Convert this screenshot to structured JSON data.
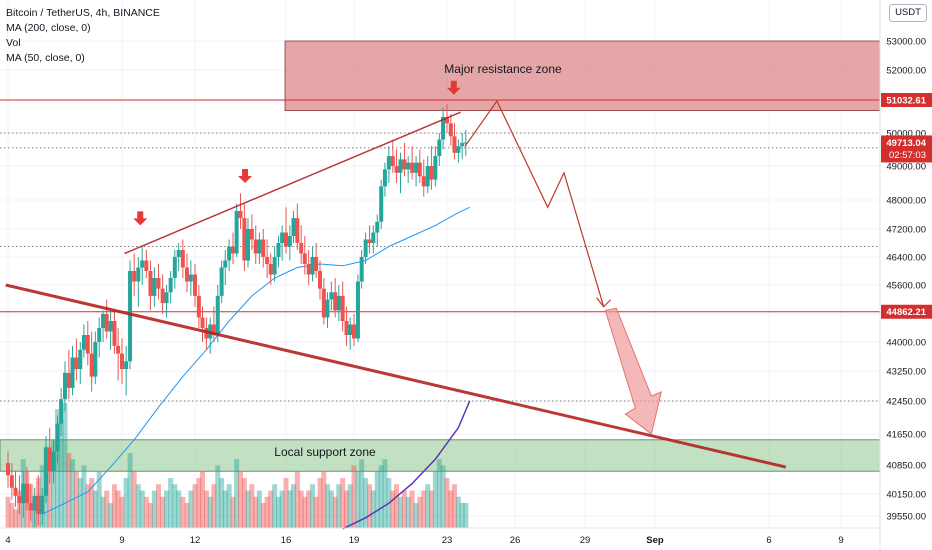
{
  "legend": {
    "symbol": "Bitcoin / TetherUS, 4h, BINANCE",
    "ma200": "MA (200, close, 0)",
    "vol": "Vol",
    "ma50": "MA (50, close, 0)"
  },
  "currency": "USDT",
  "annotations": {
    "resistance_label": "Major resistance zone",
    "support_label": "Local support zone"
  },
  "price_tags": {
    "resistance_line": "51032.61",
    "current_price": "49713.04",
    "countdown": "02:57:03",
    "support_line": "44862.21"
  },
  "colors": {
    "bull": "#26a69a",
    "bear": "#ef5350",
    "resistance_zone": "#d98080",
    "support_zone": "#8fc78f",
    "trendline": "#b22222",
    "ma50": "#2196f3",
    "ma200": "#5e35b1",
    "tag_red": "#d32f2f"
  },
  "chart_data": {
    "type": "candlestick",
    "symbol": "Bitcoin / TetherUS",
    "timeframe": "4h",
    "exchange": "BINANCE",
    "y_axis_ticks": [
      "53000.00",
      "52000.00",
      "51000.00",
      "50000.00",
      "49000.00",
      "48000.00",
      "47200.00",
      "46400.00",
      "45600.00",
      "44800.00",
      "44000.00",
      "43250.00",
      "42450.00",
      "41650.00",
      "40850.00",
      "40150.00",
      "39550.00"
    ],
    "x_axis_ticks": [
      "4",
      "9",
      "12",
      "16",
      "19",
      "23",
      "26",
      "29",
      "Sep",
      "6",
      "9"
    ],
    "x_tick_days": [
      4,
      9,
      12,
      16,
      19,
      23,
      26,
      29,
      32,
      37,
      40
    ],
    "y_range": [
      39200,
      53700
    ],
    "x_range_days": [
      3.9,
      43.2
    ],
    "resistance_zone": [
      50700,
      53000
    ],
    "support_zone": [
      40700,
      41500
    ],
    "horizontal_levels": [
      51032.61,
      44862.21
    ],
    "dotted_levels": [
      50000,
      49550,
      46700,
      42450
    ],
    "last_price": 49713.04,
    "candles": [
      {
        "d": 4.0,
        "o": 40900,
        "h": 41200,
        "l": 40300,
        "c": 40600
      },
      {
        "d": 4.17,
        "o": 40600,
        "h": 40900,
        "l": 40000,
        "c": 40300
      },
      {
        "d": 4.33,
        "o": 40300,
        "h": 40700,
        "l": 39800,
        "c": 40100
      },
      {
        "d": 4.5,
        "o": 40100,
        "h": 40600,
        "l": 39600,
        "c": 39900
      },
      {
        "d": 4.67,
        "o": 39900,
        "h": 40700,
        "l": 39500,
        "c": 40400
      },
      {
        "d": 4.83,
        "o": 40400,
        "h": 40800,
        "l": 39700,
        "c": 39900
      },
      {
        "d": 5.0,
        "o": 39900,
        "h": 40400,
        "l": 39400,
        "c": 39700
      },
      {
        "d": 5.17,
        "o": 39700,
        "h": 40300,
        "l": 39200,
        "c": 40100
      },
      {
        "d": 5.33,
        "o": 40100,
        "h": 40600,
        "l": 39300,
        "c": 39600
      },
      {
        "d": 5.5,
        "o": 39600,
        "h": 40300,
        "l": 39300,
        "c": 40100
      },
      {
        "d": 5.67,
        "o": 40100,
        "h": 41600,
        "l": 39900,
        "c": 41300
      },
      {
        "d": 5.83,
        "o": 41300,
        "h": 41800,
        "l": 40400,
        "c": 40700
      },
      {
        "d": 6.0,
        "o": 40700,
        "h": 41500,
        "l": 40400,
        "c": 41200
      },
      {
        "d": 6.17,
        "o": 41200,
        "h": 42100,
        "l": 40900,
        "c": 41900
      },
      {
        "d": 6.33,
        "o": 41900,
        "h": 42800,
        "l": 41600,
        "c": 42500
      },
      {
        "d": 6.5,
        "o": 42500,
        "h": 43500,
        "l": 42200,
        "c": 43200
      },
      {
        "d": 6.67,
        "o": 43200,
        "h": 43800,
        "l": 42500,
        "c": 42800
      },
      {
        "d": 6.83,
        "o": 42800,
        "h": 43900,
        "l": 42600,
        "c": 43600
      },
      {
        "d": 7.0,
        "o": 43600,
        "h": 44100,
        "l": 43000,
        "c": 43300
      },
      {
        "d": 7.17,
        "o": 43300,
        "h": 44000,
        "l": 42900,
        "c": 43800
      },
      {
        "d": 7.33,
        "o": 43800,
        "h": 44500,
        "l": 43600,
        "c": 44200
      },
      {
        "d": 7.5,
        "o": 44200,
        "h": 44600,
        "l": 43400,
        "c": 43700
      },
      {
        "d": 7.67,
        "o": 43700,
        "h": 44300,
        "l": 42700,
        "c": 43100
      },
      {
        "d": 7.83,
        "o": 43100,
        "h": 44300,
        "l": 42900,
        "c": 44000
      },
      {
        "d": 8.0,
        "o": 44000,
        "h": 44700,
        "l": 43600,
        "c": 44400
      },
      {
        "d": 8.17,
        "o": 44400,
        "h": 44900,
        "l": 44000,
        "c": 44800
      },
      {
        "d": 8.33,
        "o": 44800,
        "h": 45200,
        "l": 44100,
        "c": 44300
      },
      {
        "d": 8.5,
        "o": 44300,
        "h": 44900,
        "l": 43800,
        "c": 44600
      },
      {
        "d": 8.67,
        "o": 44600,
        "h": 44900,
        "l": 43700,
        "c": 43900
      },
      {
        "d": 8.83,
        "o": 43900,
        "h": 44400,
        "l": 43000,
        "c": 43700
      },
      {
        "d": 9.0,
        "o": 43700,
        "h": 44100,
        "l": 42900,
        "c": 43300
      },
      {
        "d": 9.17,
        "o": 43300,
        "h": 43900,
        "l": 42600,
        "c": 43500
      },
      {
        "d": 9.33,
        "o": 43500,
        "h": 46300,
        "l": 43300,
        "c": 46000
      },
      {
        "d": 9.5,
        "o": 46000,
        "h": 46500,
        "l": 45300,
        "c": 45700
      },
      {
        "d": 9.67,
        "o": 45700,
        "h": 46400,
        "l": 45000,
        "c": 46100
      },
      {
        "d": 9.83,
        "o": 46100,
        "h": 46700,
        "l": 45600,
        "c": 46300
      },
      {
        "d": 10.0,
        "o": 46300,
        "h": 46600,
        "l": 45800,
        "c": 46000
      },
      {
        "d": 10.17,
        "o": 46000,
        "h": 46300,
        "l": 44900,
        "c": 45300
      },
      {
        "d": 10.33,
        "o": 45300,
        "h": 46100,
        "l": 45000,
        "c": 45800
      },
      {
        "d": 10.5,
        "o": 45800,
        "h": 46200,
        "l": 45200,
        "c": 45500
      },
      {
        "d": 10.67,
        "o": 45500,
        "h": 45900,
        "l": 44800,
        "c": 45100
      },
      {
        "d": 10.83,
        "o": 45100,
        "h": 45600,
        "l": 44700,
        "c": 45400
      },
      {
        "d": 11.0,
        "o": 45400,
        "h": 46000,
        "l": 45100,
        "c": 45800
      },
      {
        "d": 11.17,
        "o": 45800,
        "h": 46600,
        "l": 45500,
        "c": 46400
      },
      {
        "d": 11.33,
        "o": 46400,
        "h": 46800,
        "l": 46000,
        "c": 46600
      },
      {
        "d": 11.5,
        "o": 46600,
        "h": 46900,
        "l": 45800,
        "c": 46100
      },
      {
        "d": 11.67,
        "o": 46100,
        "h": 46500,
        "l": 45400,
        "c": 45700
      },
      {
        "d": 11.83,
        "o": 45700,
        "h": 46300,
        "l": 45300,
        "c": 45900
      },
      {
        "d": 12.0,
        "o": 45900,
        "h": 46200,
        "l": 45000,
        "c": 45300
      },
      {
        "d": 12.17,
        "o": 45300,
        "h": 45600,
        "l": 44400,
        "c": 44700
      },
      {
        "d": 12.33,
        "o": 44700,
        "h": 45000,
        "l": 44000,
        "c": 44400
      },
      {
        "d": 12.5,
        "o": 44400,
        "h": 44700,
        "l": 43800,
        "c": 44100
      },
      {
        "d": 12.67,
        "o": 44100,
        "h": 44700,
        "l": 43700,
        "c": 44500
      },
      {
        "d": 12.83,
        "o": 44500,
        "h": 45000,
        "l": 44000,
        "c": 44200
      },
      {
        "d": 13.0,
        "o": 44200,
        "h": 45600,
        "l": 44000,
        "c": 45300
      },
      {
        "d": 13.17,
        "o": 45300,
        "h": 46300,
        "l": 45100,
        "c": 46100
      },
      {
        "d": 13.33,
        "o": 46100,
        "h": 46600,
        "l": 45600,
        "c": 46300
      },
      {
        "d": 13.5,
        "o": 46300,
        "h": 46900,
        "l": 46000,
        "c": 46700
      },
      {
        "d": 13.67,
        "o": 46700,
        "h": 47100,
        "l": 46200,
        "c": 46500
      },
      {
        "d": 13.83,
        "o": 46500,
        "h": 47900,
        "l": 46400,
        "c": 47700
      },
      {
        "d": 14.0,
        "o": 47700,
        "h": 48200,
        "l": 47200,
        "c": 47500
      },
      {
        "d": 14.17,
        "o": 47500,
        "h": 47900,
        "l": 46000,
        "c": 46300
      },
      {
        "d": 14.33,
        "o": 46300,
        "h": 47500,
        "l": 46100,
        "c": 47200
      },
      {
        "d": 14.5,
        "o": 47200,
        "h": 47600,
        "l": 46600,
        "c": 46900
      },
      {
        "d": 14.67,
        "o": 46900,
        "h": 47300,
        "l": 46200,
        "c": 46500
      },
      {
        "d": 14.83,
        "o": 46500,
        "h": 47100,
        "l": 46200,
        "c": 46900
      },
      {
        "d": 15.0,
        "o": 46900,
        "h": 47200,
        "l": 46100,
        "c": 46400
      },
      {
        "d": 15.17,
        "o": 46400,
        "h": 46900,
        "l": 45800,
        "c": 46200
      },
      {
        "d": 15.33,
        "o": 46200,
        "h": 46500,
        "l": 45600,
        "c": 45900
      },
      {
        "d": 15.5,
        "o": 45900,
        "h": 46700,
        "l": 45700,
        "c": 46400
      },
      {
        "d": 15.67,
        "o": 46400,
        "h": 47000,
        "l": 46100,
        "c": 46800
      },
      {
        "d": 15.83,
        "o": 46800,
        "h": 47300,
        "l": 46300,
        "c": 47100
      },
      {
        "d": 16.0,
        "o": 47100,
        "h": 47800,
        "l": 46500,
        "c": 46700
      },
      {
        "d": 16.17,
        "o": 46700,
        "h": 47300,
        "l": 46300,
        "c": 47000
      },
      {
        "d": 16.33,
        "o": 47000,
        "h": 47700,
        "l": 46800,
        "c": 47500
      },
      {
        "d": 16.5,
        "o": 47500,
        "h": 47900,
        "l": 46600,
        "c": 46800
      },
      {
        "d": 16.67,
        "o": 46800,
        "h": 47300,
        "l": 46200,
        "c": 46500
      },
      {
        "d": 16.83,
        "o": 46500,
        "h": 47000,
        "l": 45900,
        "c": 46200
      },
      {
        "d": 17.0,
        "o": 46200,
        "h": 46600,
        "l": 45600,
        "c": 45900
      },
      {
        "d": 17.17,
        "o": 45900,
        "h": 46700,
        "l": 45700,
        "c": 46400
      },
      {
        "d": 17.33,
        "o": 46400,
        "h": 46800,
        "l": 45800,
        "c": 46000
      },
      {
        "d": 17.5,
        "o": 46000,
        "h": 46300,
        "l": 45200,
        "c": 45500
      },
      {
        "d": 17.67,
        "o": 45500,
        "h": 45800,
        "l": 44500,
        "c": 44700
      },
      {
        "d": 17.83,
        "o": 44700,
        "h": 45400,
        "l": 44400,
        "c": 45200
      },
      {
        "d": 18.0,
        "o": 45200,
        "h": 45700,
        "l": 44900,
        "c": 45400
      },
      {
        "d": 18.17,
        "o": 45400,
        "h": 45800,
        "l": 44700,
        "c": 44900
      },
      {
        "d": 18.33,
        "o": 44900,
        "h": 45600,
        "l": 44600,
        "c": 45300
      },
      {
        "d": 18.5,
        "o": 45300,
        "h": 45700,
        "l": 44300,
        "c": 44600
      },
      {
        "d": 18.67,
        "o": 44600,
        "h": 45000,
        "l": 43900,
        "c": 44200
      },
      {
        "d": 18.83,
        "o": 44200,
        "h": 44700,
        "l": 43800,
        "c": 44500
      },
      {
        "d": 19.0,
        "o": 44500,
        "h": 44800,
        "l": 43900,
        "c": 44100
      },
      {
        "d": 19.17,
        "o": 44100,
        "h": 45900,
        "l": 44000,
        "c": 45700
      },
      {
        "d": 19.33,
        "o": 45700,
        "h": 46600,
        "l": 45500,
        "c": 46400
      },
      {
        "d": 19.5,
        "o": 46400,
        "h": 47100,
        "l": 46200,
        "c": 46900
      },
      {
        "d": 19.67,
        "o": 46900,
        "h": 47300,
        "l": 46500,
        "c": 46800
      },
      {
        "d": 19.83,
        "o": 46800,
        "h": 47300,
        "l": 46500,
        "c": 47100
      },
      {
        "d": 20.0,
        "o": 47100,
        "h": 47600,
        "l": 46700,
        "c": 47400
      },
      {
        "d": 20.17,
        "o": 47400,
        "h": 48600,
        "l": 47200,
        "c": 48400
      },
      {
        "d": 20.33,
        "o": 48400,
        "h": 49100,
        "l": 48100,
        "c": 48900
      },
      {
        "d": 20.5,
        "o": 48900,
        "h": 49600,
        "l": 48500,
        "c": 49300
      },
      {
        "d": 20.67,
        "o": 49300,
        "h": 49800,
        "l": 48800,
        "c": 49000
      },
      {
        "d": 20.83,
        "o": 49000,
        "h": 49500,
        "l": 48500,
        "c": 48800
      },
      {
        "d": 21.0,
        "o": 48800,
        "h": 49400,
        "l": 48200,
        "c": 49200
      },
      {
        "d": 21.17,
        "o": 49200,
        "h": 49700,
        "l": 48700,
        "c": 48900
      },
      {
        "d": 21.33,
        "o": 48900,
        "h": 49300,
        "l": 48500,
        "c": 49100
      },
      {
        "d": 21.5,
        "o": 49100,
        "h": 49600,
        "l": 48600,
        "c": 48800
      },
      {
        "d": 21.67,
        "o": 48800,
        "h": 49300,
        "l": 48400,
        "c": 49100
      },
      {
        "d": 21.83,
        "o": 49100,
        "h": 49500,
        "l": 48500,
        "c": 48700
      },
      {
        "d": 22.0,
        "o": 48700,
        "h": 49200,
        "l": 48100,
        "c": 48400
      },
      {
        "d": 22.17,
        "o": 48400,
        "h": 49300,
        "l": 48200,
        "c": 49000
      },
      {
        "d": 22.33,
        "o": 49000,
        "h": 49600,
        "l": 48300,
        "c": 48600
      },
      {
        "d": 22.5,
        "o": 48600,
        "h": 49600,
        "l": 48400,
        "c": 49300
      },
      {
        "d": 22.67,
        "o": 49300,
        "h": 50000,
        "l": 49000,
        "c": 49800
      },
      {
        "d": 22.83,
        "o": 49800,
        "h": 50800,
        "l": 49500,
        "c": 50500
      },
      {
        "d": 23.0,
        "o": 50500,
        "h": 50900,
        "l": 50000,
        "c": 50300
      },
      {
        "d": 23.17,
        "o": 50300,
        "h": 50600,
        "l": 49600,
        "c": 49900
      },
      {
        "d": 23.33,
        "o": 49900,
        "h": 50300,
        "l": 49200,
        "c": 49400
      },
      {
        "d": 23.5,
        "o": 49400,
        "h": 49800,
        "l": 49100,
        "c": 49600
      },
      {
        "d": 23.67,
        "o": 49600,
        "h": 50000,
        "l": 49200,
        "c": 49700
      },
      {
        "d": 23.83,
        "o": 49700,
        "h": 50100,
        "l": 49300,
        "c": 49713.04
      }
    ],
    "ma50": [
      {
        "d": 5.5,
        "v": 39600
      },
      {
        "d": 6.5,
        "v": 39900
      },
      {
        "d": 7.5,
        "v": 40200
      },
      {
        "d": 8.5,
        "v": 40800
      },
      {
        "d": 9.5,
        "v": 41500
      },
      {
        "d": 10.5,
        "v": 42300
      },
      {
        "d": 11.5,
        "v": 43100
      },
      {
        "d": 12.5,
        "v": 43800
      },
      {
        "d": 13.5,
        "v": 44600
      },
      {
        "d": 14.5,
        "v": 45300
      },
      {
        "d": 15.5,
        "v": 45800
      },
      {
        "d": 16.5,
        "v": 46100
      },
      {
        "d": 17.5,
        "v": 46200
      },
      {
        "d": 18.5,
        "v": 46150
      },
      {
        "d": 19.5,
        "v": 46300
      },
      {
        "d": 20.5,
        "v": 46700
      },
      {
        "d": 21.5,
        "v": 47000
      },
      {
        "d": 22.5,
        "v": 47300
      },
      {
        "d": 23.5,
        "v": 47650
      },
      {
        "d": 24.0,
        "v": 47800
      }
    ],
    "ma200": [
      {
        "d": 18.5,
        "v": 39200
      },
      {
        "d": 19.5,
        "v": 39500
      },
      {
        "d": 20.5,
        "v": 39900
      },
      {
        "d": 21.5,
        "v": 40400
      },
      {
        "d": 22.5,
        "v": 41000
      },
      {
        "d": 23.5,
        "v": 41800
      },
      {
        "d": 24.0,
        "v": 42450
      }
    ],
    "volume_scale_max": 1.0,
    "volumes": [
      0.25,
      0.2,
      0.15,
      0.3,
      0.55,
      0.45,
      0.35,
      0.25,
      0.4,
      0.5,
      0.65,
      0.55,
      0.7,
      0.95,
      0.85,
      1.0,
      0.6,
      0.55,
      0.45,
      0.4,
      0.5,
      0.35,
      0.4,
      0.3,
      0.45,
      0.25,
      0.3,
      0.2,
      0.35,
      0.3,
      0.25,
      0.4,
      0.6,
      0.45,
      0.35,
      0.3,
      0.25,
      0.2,
      0.3,
      0.35,
      0.25,
      0.3,
      0.4,
      0.35,
      0.3,
      0.25,
      0.2,
      0.3,
      0.35,
      0.4,
      0.45,
      0.3,
      0.25,
      0.35,
      0.5,
      0.4,
      0.3,
      0.35,
      0.25,
      0.55,
      0.45,
      0.4,
      0.3,
      0.35,
      0.25,
      0.3,
      0.2,
      0.25,
      0.3,
      0.35,
      0.25,
      0.3,
      0.4,
      0.3,
      0.35,
      0.45,
      0.3,
      0.25,
      0.3,
      0.35,
      0.25,
      0.4,
      0.45,
      0.35,
      0.3,
      0.25,
      0.35,
      0.4,
      0.3,
      0.35,
      0.5,
      0.45,
      0.55,
      0.4,
      0.35,
      0.3,
      0.45,
      0.5,
      0.55,
      0.4,
      0.3,
      0.35,
      0.25,
      0.3,
      0.25,
      0.3,
      0.2,
      0.25,
      0.3,
      0.35,
      0.3,
      0.45,
      0.55,
      0.5,
      0.4,
      0.3,
      0.35,
      0.25,
      0.2
    ],
    "trendlines": [
      {
        "name": "ascending-resistance",
        "from": {
          "d": 9.1,
          "v": 46500
        },
        "to": {
          "d": 23.6,
          "v": 50650
        }
      },
      {
        "name": "descending-trendline",
        "from": {
          "d": 3.9,
          "v": 45600
        },
        "to": {
          "d": 37.7,
          "v": 40800
        }
      }
    ],
    "projection_path": [
      {
        "d": 23.8,
        "v": 49600
      },
      {
        "d": 25.2,
        "v": 51000
      },
      {
        "d": 27.4,
        "v": 47800
      },
      {
        "d": 28.1,
        "v": 48800
      },
      {
        "d": 29.8,
        "v": 45000
      }
    ],
    "projection_target": {
      "from": {
        "d": 30.0,
        "v": 44900
      },
      "to": {
        "d": 31.5,
        "v": 41650
      }
    },
    "arrow_markers": [
      {
        "d": 9.75,
        "v": 47300
      },
      {
        "d": 14.2,
        "v": 48500
      },
      {
        "d": 23.3,
        "v": 51200
      }
    ]
  }
}
